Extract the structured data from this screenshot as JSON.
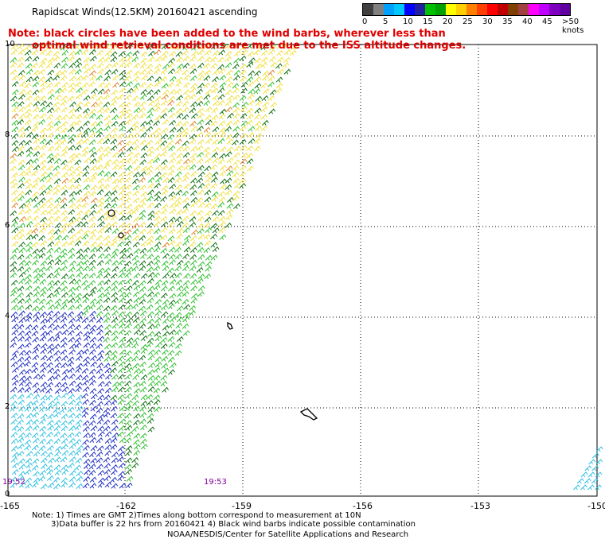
{
  "header": {
    "title": "Rapidscat Winds(12.5KM) 20160421 ascending",
    "note_line1": "Note: black circles have been added to the wind barbs, wherever less than",
    "note_line2": "optimal wind retrieval conditions are met due to the ISS altitude changes."
  },
  "legend": {
    "unit_label": ">50 knots",
    "colors": [
      "#404040",
      "#808080",
      "#00a0ff",
      "#00c8ff",
      "#0000ff",
      "#2020a0",
      "#00c000",
      "#00a000",
      "#ffff00",
      "#ffd000",
      "#ff8000",
      "#ff4000",
      "#ff0000",
      "#c00000",
      "#804000",
      "#a04040",
      "#ff00ff",
      "#c000ff",
      "#8000c0",
      "#6000a0"
    ],
    "labels": [
      "0",
      "5",
      "10",
      "15",
      "20",
      "25",
      "30",
      "35",
      "40",
      "45",
      ">50 knots"
    ]
  },
  "axes": {
    "x_ticks": [
      "-165",
      "-162",
      "-159",
      "-156",
      "-153",
      "-150"
    ],
    "y_ticks": [
      "10",
      "8",
      "6",
      "4",
      "2",
      "0"
    ]
  },
  "times": {
    "left": "19:52",
    "mid": "19:53"
  },
  "footer": {
    "line1": "Note: 1) Times are GMT 2)Times along bottom correspond to measurement at 10N",
    "line2": "3)Data buffer is 22 hrs from 20160421 4) Black wind barbs indicate possible contamination",
    "line3": "NOAA/NESDIS/Center for Satellite Applications and Research"
  },
  "colors": {
    "yellow": "#f0e040",
    "green_light": "#30c030",
    "green_dark": "#107010",
    "blue": "#2030c0",
    "cyan": "#30c0e0",
    "orange": "#e08030",
    "grid": "#000000",
    "note_red": "#e00000",
    "time_purple": "#8000a0"
  }
}
